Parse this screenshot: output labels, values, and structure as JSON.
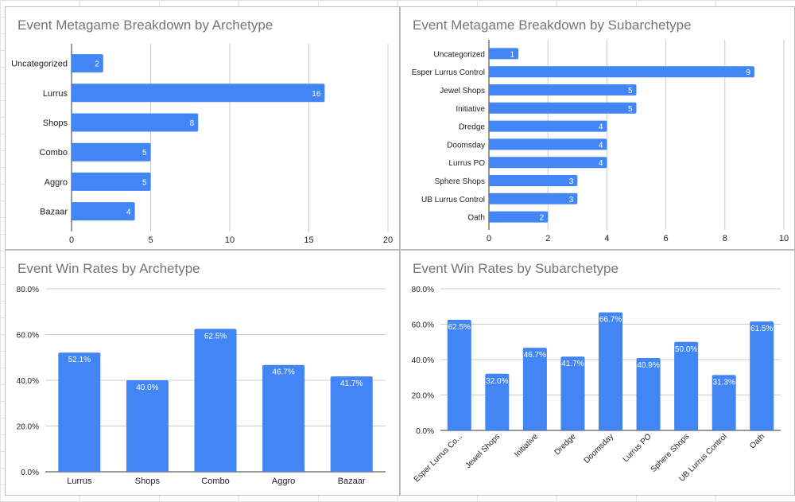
{
  "colors": {
    "bar": "#4285f4",
    "grid": "#cccccc",
    "axis": "#333333",
    "title": "#757575",
    "label": "#222222",
    "bar_label": "#ffffff"
  },
  "charts": {
    "c1": {
      "title": "Event Metagame Breakdown by Archetype"
    },
    "c2": {
      "title": "Event Metagame Breakdown by Subarchetype"
    },
    "c3": {
      "title": "Event Win Rates by Archetype"
    },
    "c4": {
      "title": "Event Win Rates by Subarchetype"
    }
  },
  "chart_data": [
    {
      "id": "c1",
      "type": "bar",
      "orientation": "horizontal",
      "title": "Event Metagame Breakdown by Archetype",
      "categories": [
        "Uncategorized",
        "Lurrus",
        "Shops",
        "Combo",
        "Aggro",
        "Bazaar"
      ],
      "values": [
        2,
        16,
        8,
        5,
        5,
        4
      ],
      "data_labels": [
        "2",
        "16",
        "8",
        "5",
        "5",
        "4"
      ],
      "xlim": [
        0,
        20
      ],
      "ticks": [
        0,
        5,
        10,
        15,
        20
      ],
      "tick_labels": [
        "0",
        "5",
        "10",
        "15",
        "20"
      ],
      "grid": true,
      "legend": "none"
    },
    {
      "id": "c2",
      "type": "bar",
      "orientation": "horizontal",
      "title": "Event Metagame Breakdown by Subarchetype",
      "categories": [
        "Uncategorized",
        "Esper Lurrus Control",
        "Jewel Shops",
        "Initiative",
        "Dredge",
        "Doomsday",
        "Lurrus PO",
        "Sphere Shops",
        "UB Lurrus Control",
        "Oath"
      ],
      "values": [
        1,
        9,
        5,
        5,
        4,
        4,
        4,
        3,
        3,
        2
      ],
      "data_labels": [
        "1",
        "9",
        "5",
        "5",
        "4",
        "4",
        "4",
        "3",
        "3",
        "2"
      ],
      "xlim": [
        0,
        10
      ],
      "ticks": [
        0,
        2,
        4,
        6,
        8,
        10
      ],
      "tick_labels": [
        "0",
        "2",
        "4",
        "6",
        "8",
        "10"
      ],
      "grid": true,
      "legend": "none"
    },
    {
      "id": "c3",
      "type": "bar",
      "orientation": "vertical",
      "title": "Event Win Rates by Archetype",
      "categories": [
        "Lurrus",
        "Shops",
        "Combo",
        "Aggro",
        "Bazaar"
      ],
      "values": [
        52.1,
        40.0,
        62.5,
        46.7,
        41.7
      ],
      "data_labels": [
        "52.1%",
        "40.0%",
        "62.5%",
        "46.7%",
        "41.7%"
      ],
      "ylim": [
        0,
        80
      ],
      "ticks": [
        0,
        20,
        40,
        60,
        80
      ],
      "tick_labels": [
        "0.0%",
        "20.0%",
        "40.0%",
        "60.0%",
        "80.0%"
      ],
      "grid": true,
      "legend": "none"
    },
    {
      "id": "c4",
      "type": "bar",
      "orientation": "vertical",
      "title": "Event Win Rates by Subarchetype",
      "categories": [
        "Esper Lurrus Co...",
        "Jewel Shops",
        "Initiative",
        "Dredge",
        "Doomsday",
        "Lurrus PO",
        "Sphere Shops",
        "UB Lurrus Control",
        "Oath"
      ],
      "values": [
        62.5,
        32.0,
        46.7,
        41.7,
        66.7,
        40.9,
        50.0,
        31.3,
        61.5
      ],
      "data_labels": [
        "62.5%",
        "32.0%",
        "46.7%",
        "41.7%",
        "66.7%",
        "40.9%",
        "50.0%",
        "31.3%",
        "61.5%"
      ],
      "ylim": [
        0,
        80
      ],
      "ticks": [
        0,
        20,
        40,
        60,
        80
      ],
      "tick_labels": [
        "0.0%",
        "20.0%",
        "40.0%",
        "60.0%",
        "80.0%"
      ],
      "grid": true,
      "legend": "none",
      "x_label_rotation": "rotated"
    }
  ]
}
